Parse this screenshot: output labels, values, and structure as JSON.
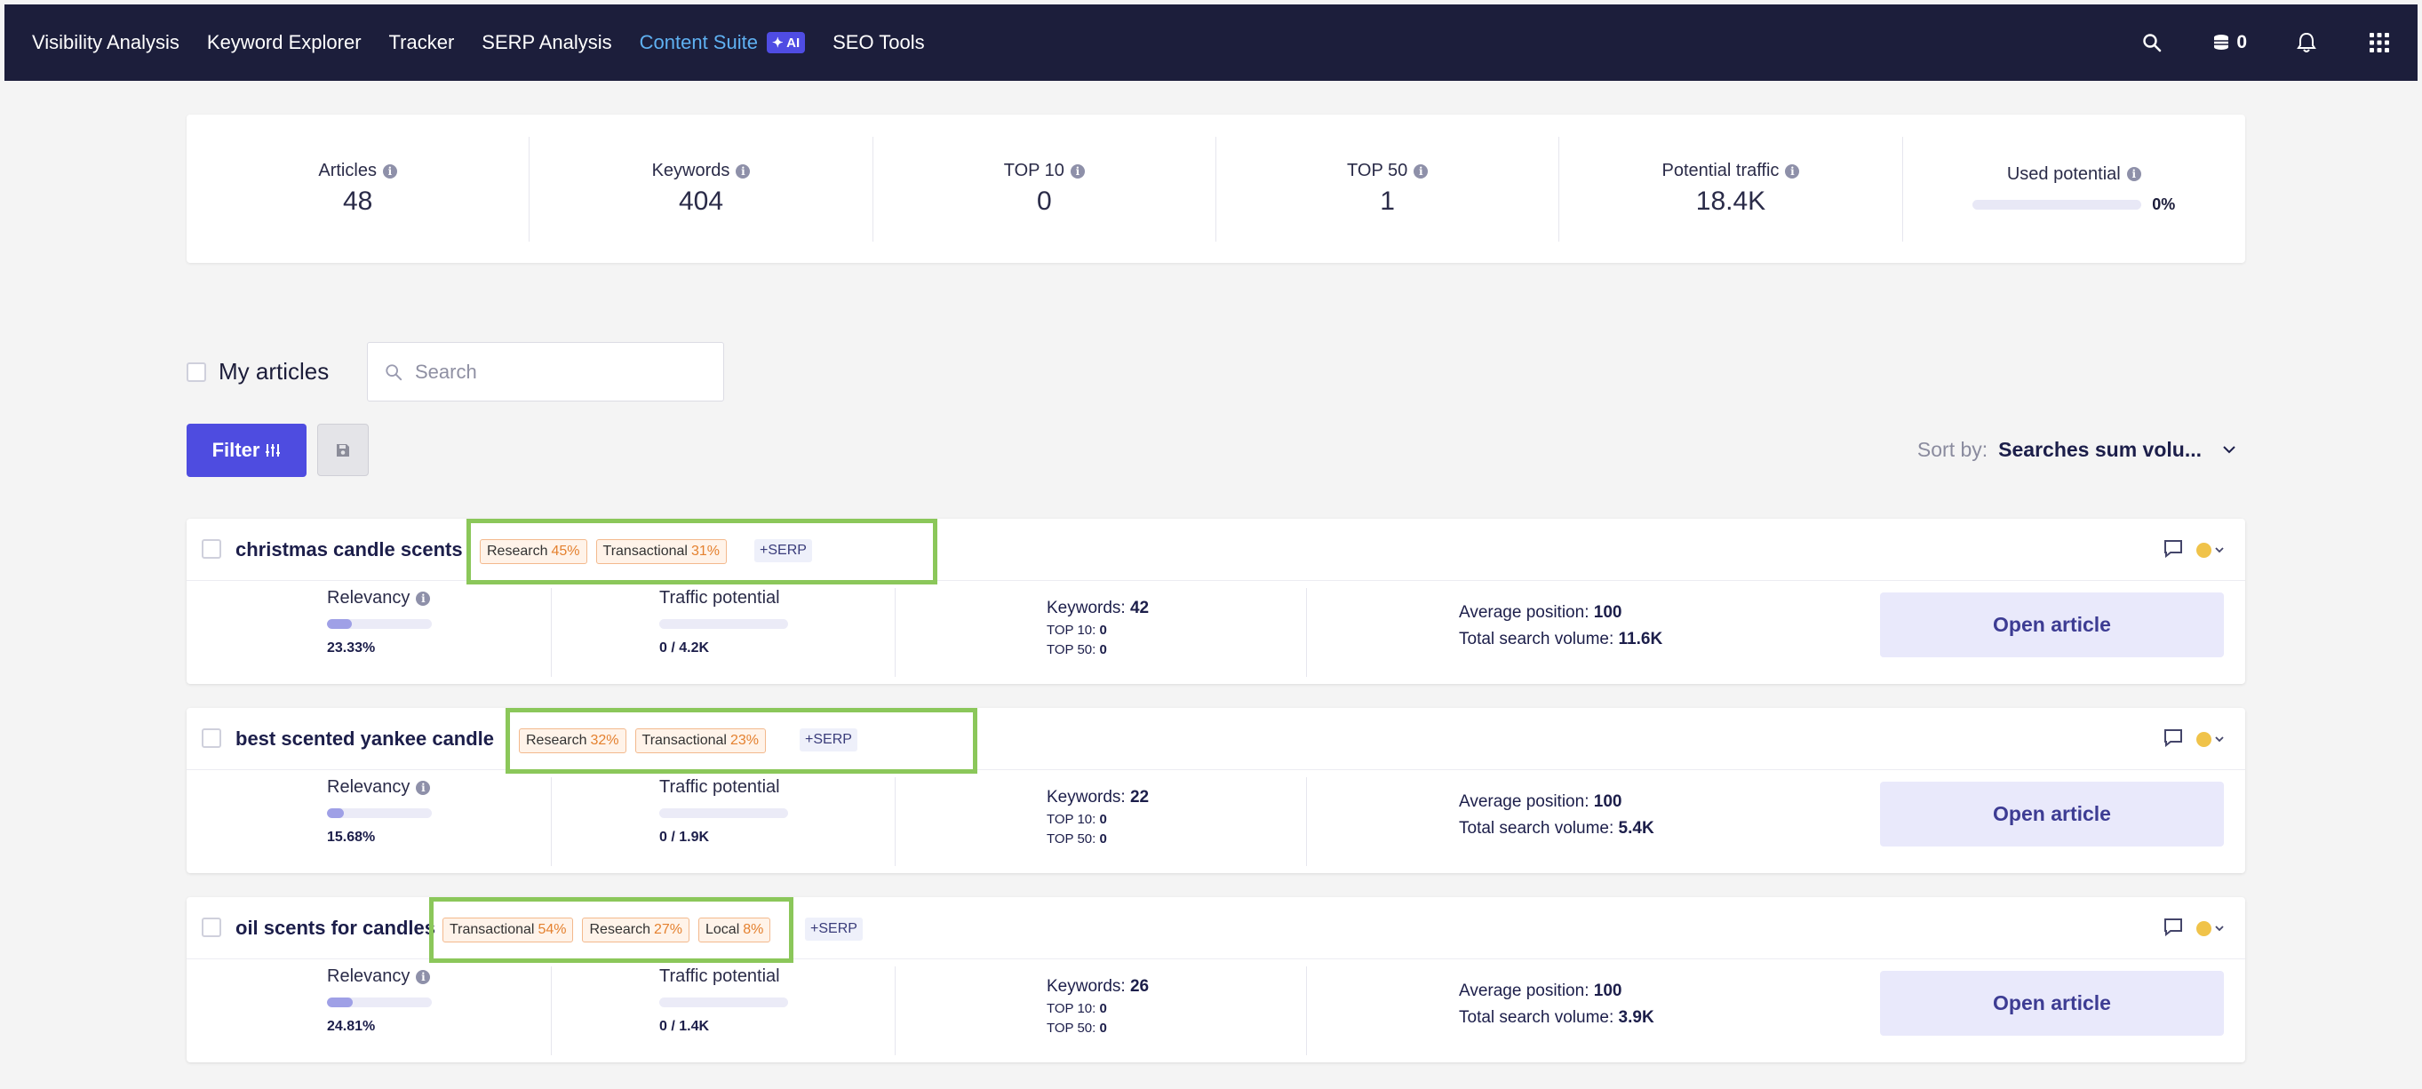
{
  "nav": {
    "items": [
      "Visibility Analysis",
      "Keyword Explorer",
      "Tracker",
      "SERP Analysis"
    ],
    "active": "Content Suite",
    "ai_badge": "AI",
    "last": "SEO Tools",
    "credits": "0"
  },
  "stats": [
    {
      "label": "Articles",
      "value": "48"
    },
    {
      "label": "Keywords",
      "value": "404"
    },
    {
      "label": "TOP 10",
      "value": "0"
    },
    {
      "label": "TOP 50",
      "value": "1"
    },
    {
      "label": "Potential traffic",
      "value": "18.4K"
    },
    {
      "label": "Used potential",
      "value": "0%",
      "fill_fraction": 0
    }
  ],
  "filters": {
    "my_articles_label": "My articles",
    "search_placeholder": "Search",
    "filter_label": "Filter",
    "sort_label": "Sort by:",
    "sort_value": "Searches sum volu..."
  },
  "articles": [
    {
      "title": "christmas candle scents",
      "tags": [
        {
          "name": "Research",
          "pct": "45%"
        },
        {
          "name": "Transactional",
          "pct": "31%"
        }
      ],
      "serp": "+SERP",
      "relevancy_label": "Relevancy",
      "relevancy": "23.33%",
      "relevancy_fraction": 0.2333,
      "traffic_label": "Traffic potential",
      "traffic": "0 / 4.2K",
      "keywords_label": "Keywords:",
      "keywords": "42",
      "top10_label": "TOP 10:",
      "top10": "0",
      "top50_label": "TOP 50:",
      "top50": "0",
      "avg_label": "Average position:",
      "avg_pos": "100",
      "volume_label": "Total search volume:",
      "volume": "11.6K",
      "open_label": "Open article"
    },
    {
      "title": "best scented yankee candle",
      "tags": [
        {
          "name": "Research",
          "pct": "32%"
        },
        {
          "name": "Transactional",
          "pct": "23%"
        }
      ],
      "serp": "+SERP",
      "relevancy_label": "Relevancy",
      "relevancy": "15.68%",
      "relevancy_fraction": 0.1568,
      "traffic_label": "Traffic potential",
      "traffic": "0 / 1.9K",
      "keywords_label": "Keywords:",
      "keywords": "22",
      "top10_label": "TOP 10:",
      "top10": "0",
      "top50_label": "TOP 50:",
      "top50": "0",
      "avg_label": "Average position:",
      "avg_pos": "100",
      "volume_label": "Total search volume:",
      "volume": "5.4K",
      "open_label": "Open article"
    },
    {
      "title": "oil scents for candles",
      "tags": [
        {
          "name": "Transactional",
          "pct": "54%"
        },
        {
          "name": "Research",
          "pct": "27%"
        },
        {
          "name": "Local",
          "pct": "8%"
        }
      ],
      "serp": "+SERP",
      "relevancy_label": "Relevancy",
      "relevancy": "24.81%",
      "relevancy_fraction": 0.2481,
      "traffic_label": "Traffic potential",
      "traffic": "0 / 1.4K",
      "keywords_label": "Keywords:",
      "keywords": "26",
      "top10_label": "TOP 10:",
      "top10": "0",
      "top50_label": "TOP 50:",
      "top50": "0",
      "avg_label": "Average position:",
      "avg_pos": "100",
      "volume_label": "Total search volume:",
      "volume": "3.9K",
      "open_label": "Open article"
    }
  ],
  "colors": {
    "nav_bg": "#1c1e3b",
    "accent": "#4e4ce0",
    "active_nav": "#5fb1f2",
    "highlight_box": "#8bc75a",
    "status": "#f0c34a"
  }
}
